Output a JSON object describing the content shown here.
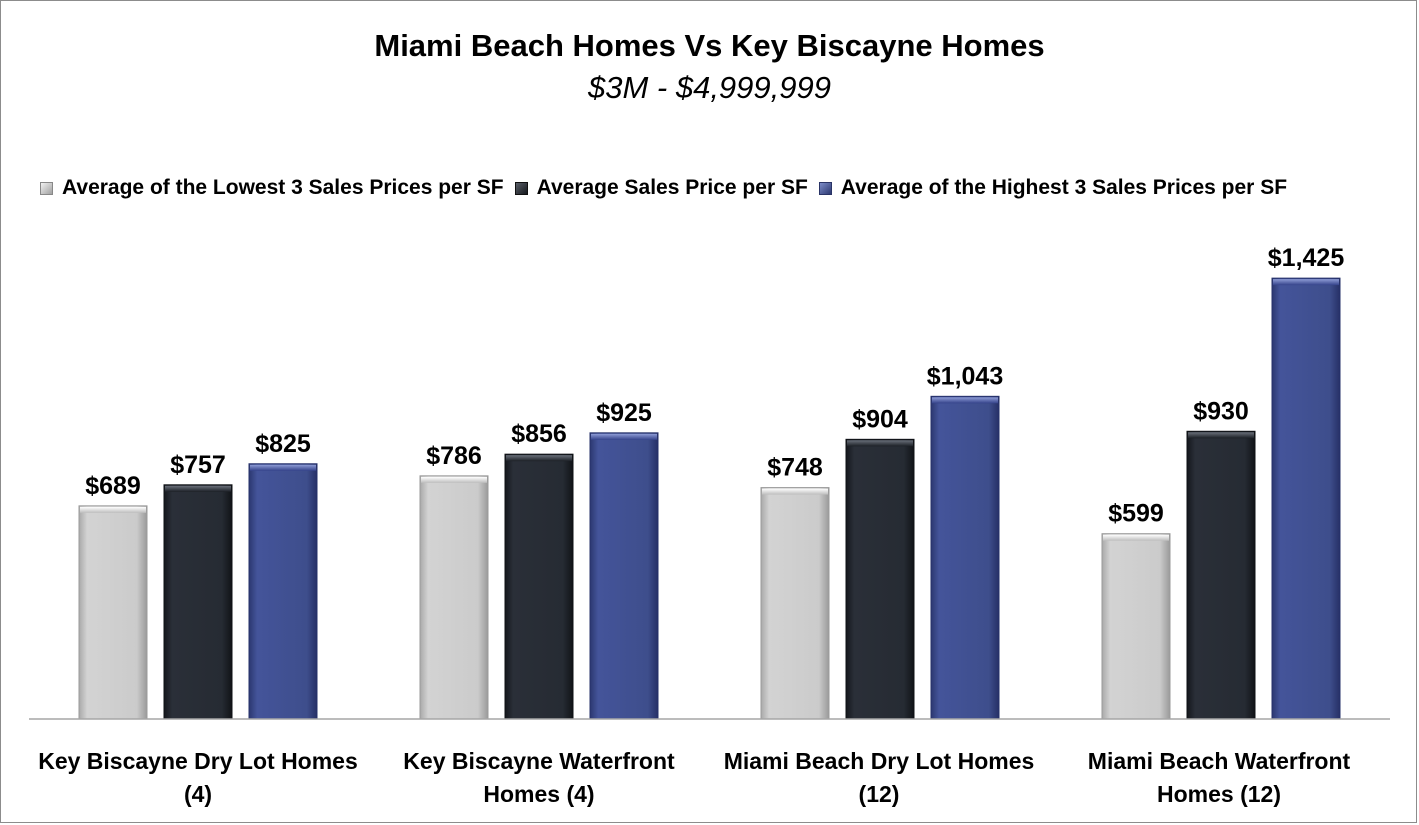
{
  "colors": {
    "low": "#c8c8c8",
    "avg": "#252a33",
    "high": "#3f4f8c",
    "axis": "#a6a6a6"
  },
  "chart_data": {
    "type": "bar",
    "title": "Miami Beach Homes Vs Key Biscayne Homes",
    "subtitle": "$3M - $4,999,999",
    "categories": [
      "Key Biscayne Dry Lot Homes (4)",
      "Key Biscayne Waterfront Homes (4)",
      "Miami Beach Dry Lot Homes (12)",
      "Miami Beach Waterfront Homes (12)"
    ],
    "series": [
      {
        "name": "Average of the Lowest 3 Sales Prices per SF",
        "values": [
          689,
          786,
          748,
          599
        ],
        "labels": [
          "$689",
          "$786",
          "$748",
          "$599"
        ]
      },
      {
        "name": "Average Sales Price per SF",
        "values": [
          757,
          856,
          904,
          930
        ],
        "labels": [
          "$757",
          "$856",
          "$904",
          "$930"
        ]
      },
      {
        "name": "Average of the Highest 3 Sales Prices per SF",
        "values": [
          825,
          925,
          1043,
          1425
        ],
        "labels": [
          "$825",
          "$925",
          "$1,043",
          "$1,425"
        ]
      }
    ],
    "ylim": [
      0,
      1600
    ],
    "grid": false,
    "legend_position": "top"
  }
}
